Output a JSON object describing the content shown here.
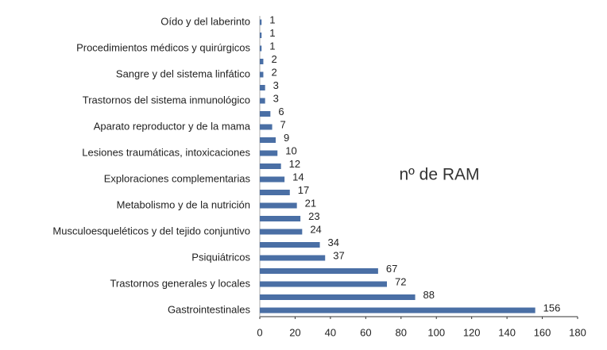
{
  "chart_data": {
    "type": "bar",
    "orientation": "horizontal",
    "title": "nº de RAM",
    "categories": [
      "Oído y del laberinto",
      null,
      "Procedimientos médicos y quirúrgicos",
      null,
      "Sangre y del sistema linfático",
      null,
      "Trastornos del sistema inmunológico",
      null,
      "Aparato reproductor y de la mama",
      null,
      "Lesiones traumáticas, intoxicaciones",
      null,
      "Exploraciones complementarias",
      null,
      "Metabolismo y de la nutrición",
      null,
      "Musculoesqueléticos y del tejido conjuntivo",
      null,
      "Psiquiátricos",
      null,
      "Trastornos generales y locales",
      null,
      "Gastrointestinales"
    ],
    "values": [
      1,
      1,
      1,
      2,
      2,
      3,
      3,
      6,
      7,
      9,
      10,
      12,
      14,
      17,
      21,
      23,
      24,
      34,
      37,
      67,
      72,
      88,
      156
    ],
    "color": "#4a6fa5",
    "xlim": [
      0,
      180
    ],
    "xticks": [
      0,
      20,
      40,
      60,
      80,
      100,
      120,
      140,
      160,
      180
    ]
  }
}
